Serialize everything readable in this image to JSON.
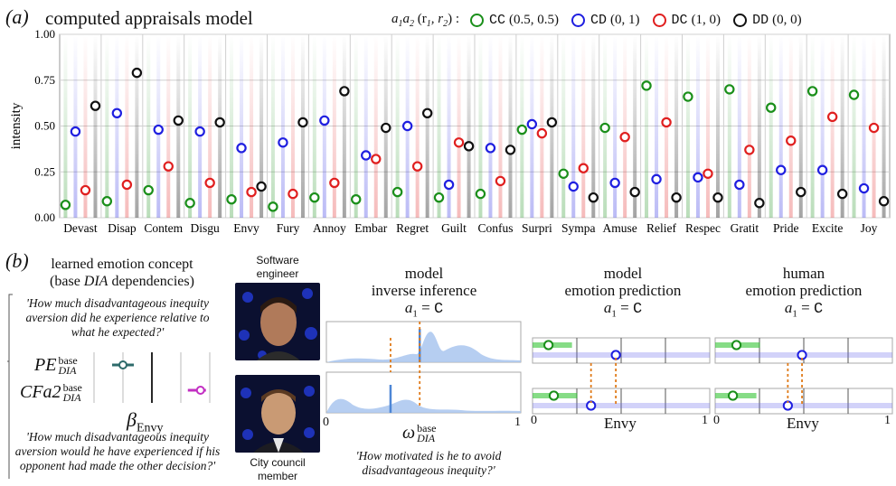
{
  "panel_a": {
    "letter": "(a)",
    "title": "computed appraisals model",
    "legend_heading_a": "a",
    "legend_heading_sub1": "1",
    "legend_heading_sub2": "2",
    "legend_heading_r": "(r",
    "legend_heading_r1": "1",
    "legend_heading_comma": ", r",
    "legend_heading_r2": "2",
    "legend_heading_close": ") :",
    "legend": [
      {
        "code": "CC",
        "label": "(0.5, 0.5)",
        "color": "#1a8f1a"
      },
      {
        "code": "CD",
        "label": "(0, 1)",
        "color": "#1f1fe0"
      },
      {
        "code": "DC",
        "label": "(1, 0)",
        "color": "#e01f1f"
      },
      {
        "code": "DD",
        "label": "(0, 0)",
        "color": "#111111"
      }
    ]
  },
  "chart_data": {
    "type": "scatter",
    "title": "computed appraisals model",
    "ylabel": "intensity",
    "ylim": [
      0,
      1
    ],
    "yticks": [
      "0.00",
      "0.25",
      "0.50",
      "0.75",
      "1.00"
    ],
    "grid": true,
    "legend_placement": "top-right",
    "categories": [
      "Devast",
      "Disap",
      "Contem",
      "Disgu",
      "Envy",
      "Fury",
      "Annoy",
      "Embar",
      "Regret",
      "Guilt",
      "Confus",
      "Surpri",
      "Sympa",
      "Amuse",
      "Relief",
      "Respec",
      "Gratit",
      "Pride",
      "Excite",
      "Joy"
    ],
    "series": [
      {
        "name": "CC",
        "color": "#1a8f1a",
        "values": [
          0.07,
          0.09,
          0.15,
          0.08,
          0.1,
          0.06,
          0.11,
          0.1,
          0.14,
          0.11,
          0.13,
          0.48,
          0.24,
          0.49,
          0.72,
          0.66,
          0.7,
          0.6,
          0.69,
          0.67
        ]
      },
      {
        "name": "CD",
        "color": "#1f1fe0",
        "values": [
          0.47,
          0.57,
          0.48,
          0.47,
          0.38,
          0.41,
          0.53,
          0.34,
          0.5,
          0.18,
          0.38,
          0.51,
          0.17,
          0.19,
          0.21,
          0.22,
          0.18,
          0.26,
          0.26,
          0.16
        ]
      },
      {
        "name": "DC",
        "color": "#e01f1f",
        "values": [
          0.15,
          0.18,
          0.28,
          0.19,
          0.14,
          0.13,
          0.19,
          0.32,
          0.28,
          0.41,
          0.2,
          0.46,
          0.27,
          0.44,
          0.52,
          0.24,
          0.37,
          0.42,
          0.55,
          0.49
        ]
      },
      {
        "name": "DD",
        "color": "#111111",
        "values": [
          0.61,
          0.79,
          0.53,
          0.52,
          0.17,
          0.52,
          0.69,
          0.49,
          0.57,
          0.39,
          0.37,
          0.52,
          0.11,
          0.14,
          0.11,
          0.11,
          0.08,
          0.14,
          0.13,
          0.09
        ]
      }
    ]
  },
  "panel_b": {
    "letter": "(b)",
    "concept_title_1": "learned emotion concept",
    "concept_title_2a": "(base ",
    "concept_title_2b": "DIA",
    "concept_title_2c": " dependencies)",
    "quote_top": "'How much disadvantageous inequity aversion did he experience relative to what he expected?'",
    "pe_label": "PE",
    "pe_sup": "base",
    "pe_sub": "DIA",
    "cfa_label": "CFa2",
    "cfa_sup": "base",
    "cfa_sub": "DIA",
    "beta_label": "β",
    "beta_sub": "Envy",
    "quote_bottom": "'How much disadvantageous inequity aversion would he have experienced if his opponent had made the other decision?'",
    "photo_top_caption": "Software engineer",
    "photo_bottom_caption": "City council member",
    "inverse_title_1": "model",
    "inverse_title_2": "inverse inference",
    "inverse_title_3a": "a",
    "inverse_title_3b": "1",
    "inverse_title_3c": " = ",
    "inverse_title_3d": "C",
    "axis_0": "0",
    "axis_1": "1",
    "omega_label": "ω",
    "omega_sup": "base",
    "omega_sub": "DIA",
    "omega_quote": "'How motivated is he to avoid disadvantageous inequity?'",
    "model_pred_title_1": "model",
    "model_pred_title_2": "emotion prediction",
    "human_pred_title_1": "human",
    "human_pred_title_2": "emotion prediction",
    "pred_a1": "a",
    "pred_sub": "1",
    "pred_eq": " = ",
    "pred_C": "C",
    "envy_label": "Envy",
    "inferred_omega": [
      0.48,
      0.33
    ],
    "model_prediction": {
      "green": [
        0.09,
        0.12
      ],
      "blue": [
        0.47,
        0.33
      ]
    },
    "human_prediction": {
      "green": [
        0.12,
        0.1
      ],
      "blue": [
        0.49,
        0.41
      ]
    },
    "pe_beta": 0.25,
    "cfa_beta": 0.92
  }
}
